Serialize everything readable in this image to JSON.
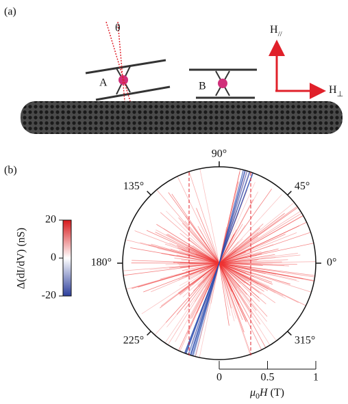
{
  "panel_a": {
    "label": "(a)",
    "theta": "θ",
    "molecule_a": "A",
    "molecule_b": "B",
    "h_parallel": {
      "symbol": "H",
      "sub": "//"
    },
    "h_perp": {
      "symbol": "H",
      "sub": "⊥"
    }
  },
  "panel_b": {
    "label": "(b)",
    "angles": [
      {
        "value": 90,
        "label": "90°"
      },
      {
        "value": 45,
        "label": "45°"
      },
      {
        "value": 0,
        "label": "0°"
      },
      {
        "value": 315,
        "label": "315°"
      },
      {
        "value": 225,
        "label": "225°"
      },
      {
        "value": 180,
        "label": "180°"
      },
      {
        "value": 135,
        "label": "135°"
      }
    ],
    "colorbar": {
      "lim": [
        -20,
        20
      ],
      "ticks": [
        20,
        0,
        -20
      ],
      "label": "Δ(dI/dV) (nS)"
    },
    "axis": {
      "lim": [
        0,
        1
      ],
      "ticks": [
        0,
        0.5,
        1
      ],
      "label": {
        "symbol": "μ",
        "sub": "0",
        "var": "H",
        "unit": "(T)"
      }
    }
  }
}
